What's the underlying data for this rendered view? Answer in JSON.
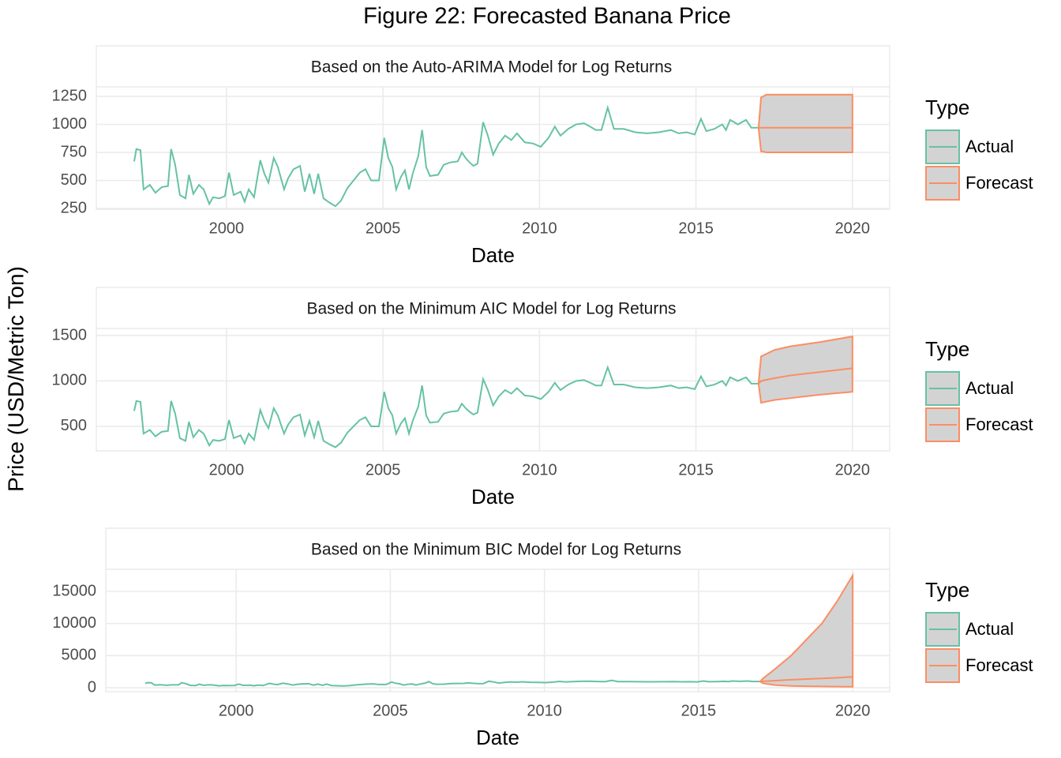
{
  "title": "Figure 22: Forecasted Banana Price",
  "y_label": "Price (USD/Metric Ton)",
  "chart_data": [
    {
      "type": "line",
      "subtitle": "Based on the Auto-ARIMA Model for Log Returns",
      "x_label": "Date",
      "legend_title": "Type",
      "band_color": "#d3d3d3",
      "grid": true,
      "xlim": [
        1995.84,
        2021.19
      ],
      "xticks": [
        2000,
        2005,
        2010,
        2015,
        2020
      ],
      "ylim": [
        243,
        1335
      ],
      "yticks": [
        250,
        500,
        750,
        1000,
        1250
      ],
      "series": [
        {
          "name": "Actual",
          "color": "#66c2a5",
          "x": [
            1997.05,
            1997.12,
            1997.25,
            1997.35,
            1997.55,
            1997.73,
            1997.93,
            1998.13,
            1998.23,
            1998.36,
            1998.51,
            1998.69,
            1998.8,
            1998.94,
            1999.12,
            1999.27,
            1999.45,
            1999.57,
            1999.77,
            1999.95,
            2000.08,
            2000.23,
            2000.45,
            2000.58,
            2000.71,
            2000.88,
            2001.08,
            2001.21,
            2001.34,
            2001.51,
            2001.64,
            2001.84,
            2001.97,
            2002.14,
            2002.35,
            2002.5,
            2002.65,
            2002.8,
            2002.93,
            2003.1,
            2003.3,
            2003.48,
            2003.66,
            2003.86,
            2004.06,
            2004.26,
            2004.44,
            2004.62,
            2004.87,
            2005.04,
            2005.17,
            2005.3,
            2005.42,
            2005.57,
            2005.7,
            2005.83,
            2005.95,
            2006.13,
            2006.25,
            2006.38,
            2006.5,
            2006.76,
            2006.94,
            2007.14,
            2007.39,
            2007.52,
            2007.64,
            2007.77,
            2007.89,
            2008.02,
            2008.2,
            2008.35,
            2008.52,
            2008.7,
            2008.9,
            2009.1,
            2009.28,
            2009.53,
            2009.79,
            2010.04,
            2010.29,
            2010.49,
            2010.67,
            2010.92,
            2011.17,
            2011.42,
            2011.62,
            2011.8,
            2011.98,
            2012.18,
            2012.38,
            2012.69,
            2013.06,
            2013.44,
            2013.82,
            2014.2,
            2014.45,
            2014.7,
            2014.96,
            2015.16,
            2015.33,
            2015.59,
            2015.84,
            2015.96,
            2016.09,
            2016.34,
            2016.6,
            2016.77,
            2017.02
          ],
          "values": [
            670,
            780,
            770,
            420,
            460,
            390,
            440,
            450,
            780,
            640,
            370,
            340,
            550,
            380,
            460,
            420,
            290,
            350,
            340,
            360,
            570,
            370,
            400,
            310,
            420,
            350,
            680,
            560,
            480,
            700,
            620,
            420,
            520,
            600,
            630,
            400,
            560,
            380,
            560,
            340,
            300,
            270,
            320,
            430,
            500,
            570,
            600,
            500,
            500,
            880,
            700,
            620,
            420,
            530,
            590,
            420,
            560,
            720,
            950,
            620,
            540,
            550,
            640,
            660,
            670,
            750,
            700,
            660,
            630,
            650,
            1020,
            900,
            730,
            830,
            900,
            860,
            920,
            840,
            830,
            800,
            880,
            980,
            900,
            960,
            1000,
            1010,
            980,
            950,
            950,
            1150,
            960,
            960,
            930,
            920,
            930,
            950,
            920,
            930,
            910,
            1050,
            940,
            960,
            1000,
            950,
            1040,
            1000,
            1040,
            970,
            970
          ]
        },
        {
          "name": "Forecast",
          "color": "#fc8d62",
          "x": [
            2017.0,
            2017.08,
            2017.25,
            2020.0
          ],
          "values": [
            970,
            970,
            970,
            970
          ],
          "upper": [
            970,
            1240,
            1265,
            1265
          ],
          "lower": [
            970,
            760,
            750,
            750
          ]
        }
      ]
    },
    {
      "type": "line",
      "subtitle": "Based on the Minimum AIC Model for Log Returns",
      "x_label": "Date",
      "legend_title": "Type",
      "band_color": "#d3d3d3",
      "grid": true,
      "xlim": [
        1995.84,
        2021.19
      ],
      "xticks": [
        2000,
        2005,
        2010,
        2015,
        2020
      ],
      "ylim": [
        230,
        1578
      ],
      "yticks": [
        500,
        1000,
        1500
      ],
      "series": [
        {
          "name": "Actual",
          "color": "#66c2a5",
          "x": [
            1997.05,
            1997.12,
            1997.25,
            1997.35,
            1997.55,
            1997.73,
            1997.93,
            1998.13,
            1998.23,
            1998.36,
            1998.51,
            1998.69,
            1998.8,
            1998.94,
            1999.12,
            1999.27,
            1999.45,
            1999.57,
            1999.77,
            1999.95,
            2000.08,
            2000.23,
            2000.45,
            2000.58,
            2000.71,
            2000.88,
            2001.08,
            2001.21,
            2001.34,
            2001.51,
            2001.64,
            2001.84,
            2001.97,
            2002.14,
            2002.35,
            2002.5,
            2002.65,
            2002.8,
            2002.93,
            2003.1,
            2003.3,
            2003.48,
            2003.66,
            2003.86,
            2004.06,
            2004.26,
            2004.44,
            2004.62,
            2004.87,
            2005.04,
            2005.17,
            2005.3,
            2005.42,
            2005.57,
            2005.7,
            2005.83,
            2005.95,
            2006.13,
            2006.25,
            2006.38,
            2006.5,
            2006.76,
            2006.94,
            2007.14,
            2007.39,
            2007.52,
            2007.64,
            2007.77,
            2007.89,
            2008.02,
            2008.2,
            2008.35,
            2008.52,
            2008.7,
            2008.9,
            2009.1,
            2009.28,
            2009.53,
            2009.79,
            2010.04,
            2010.29,
            2010.49,
            2010.67,
            2010.92,
            2011.17,
            2011.42,
            2011.62,
            2011.8,
            2011.98,
            2012.18,
            2012.38,
            2012.69,
            2013.06,
            2013.44,
            2013.82,
            2014.2,
            2014.45,
            2014.7,
            2014.96,
            2015.16,
            2015.33,
            2015.59,
            2015.84,
            2015.96,
            2016.09,
            2016.34,
            2016.6,
            2016.77,
            2017.02
          ],
          "values": [
            670,
            780,
            770,
            420,
            460,
            390,
            440,
            450,
            780,
            640,
            370,
            340,
            550,
            380,
            460,
            420,
            290,
            350,
            340,
            360,
            570,
            370,
            400,
            310,
            420,
            350,
            680,
            560,
            480,
            700,
            620,
            420,
            520,
            600,
            630,
            400,
            560,
            380,
            560,
            340,
            300,
            270,
            320,
            430,
            500,
            570,
            600,
            500,
            500,
            880,
            700,
            620,
            420,
            530,
            590,
            420,
            560,
            720,
            950,
            620,
            540,
            550,
            640,
            660,
            670,
            750,
            700,
            660,
            630,
            650,
            1020,
            900,
            730,
            830,
            900,
            860,
            920,
            840,
            830,
            800,
            880,
            980,
            900,
            960,
            1000,
            1010,
            980,
            950,
            950,
            1150,
            960,
            960,
            930,
            920,
            930,
            950,
            920,
            930,
            910,
            1050,
            940,
            960,
            1000,
            950,
            1040,
            1000,
            1040,
            970,
            970
          ]
        },
        {
          "name": "Forecast",
          "color": "#fc8d62",
          "x": [
            2017.0,
            2017.08,
            2017.5,
            2018.0,
            2019.0,
            2020.0
          ],
          "values": [
            970,
            1000,
            1030,
            1060,
            1100,
            1140
          ],
          "upper": [
            970,
            1270,
            1340,
            1380,
            1430,
            1490
          ],
          "lower": [
            970,
            760,
            790,
            810,
            850,
            880
          ]
        }
      ]
    },
    {
      "type": "line",
      "subtitle": "Based on the Minimum BIC Model for Log Returns",
      "x_label": "Date",
      "legend_title": "Type",
      "band_color": "#d3d3d3",
      "grid": true,
      "xlim": [
        1995.77,
        2021.2
      ],
      "xticks": [
        2000,
        2005,
        2010,
        2015,
        2020
      ],
      "ylim": [
        -615,
        18444
      ],
      "yticks": [
        0,
        5000,
        10000,
        15000
      ],
      "series": [
        {
          "name": "Actual",
          "color": "#66c2a5",
          "x": [
            1997.05,
            1997.12,
            1997.25,
            1997.35,
            1997.55,
            1997.73,
            1997.93,
            1998.13,
            1998.23,
            1998.36,
            1998.51,
            1998.69,
            1998.8,
            1998.94,
            1999.12,
            1999.27,
            1999.45,
            1999.57,
            1999.77,
            1999.95,
            2000.08,
            2000.23,
            2000.45,
            2000.58,
            2000.71,
            2000.88,
            2001.08,
            2001.21,
            2001.34,
            2001.51,
            2001.64,
            2001.84,
            2001.97,
            2002.14,
            2002.35,
            2002.5,
            2002.65,
            2002.8,
            2002.93,
            2003.1,
            2003.3,
            2003.48,
            2003.66,
            2003.86,
            2004.06,
            2004.26,
            2004.44,
            2004.62,
            2004.87,
            2005.04,
            2005.17,
            2005.3,
            2005.42,
            2005.57,
            2005.7,
            2005.83,
            2005.95,
            2006.13,
            2006.25,
            2006.38,
            2006.5,
            2006.76,
            2006.94,
            2007.14,
            2007.39,
            2007.52,
            2007.64,
            2007.77,
            2007.89,
            2008.02,
            2008.2,
            2008.35,
            2008.52,
            2008.7,
            2008.9,
            2009.1,
            2009.28,
            2009.53,
            2009.79,
            2010.04,
            2010.29,
            2010.49,
            2010.67,
            2010.92,
            2011.17,
            2011.42,
            2011.62,
            2011.8,
            2011.98,
            2012.18,
            2012.38,
            2012.69,
            2013.06,
            2013.44,
            2013.82,
            2014.2,
            2014.45,
            2014.7,
            2014.96,
            2015.16,
            2015.33,
            2015.59,
            2015.84,
            2015.96,
            2016.09,
            2016.34,
            2016.6,
            2016.77,
            2017.02
          ],
          "values": [
            670,
            780,
            770,
            420,
            460,
            390,
            440,
            450,
            780,
            640,
            370,
            340,
            550,
            380,
            460,
            420,
            290,
            350,
            340,
            360,
            570,
            370,
            400,
            310,
            420,
            350,
            680,
            560,
            480,
            700,
            620,
            420,
            520,
            600,
            630,
            400,
            560,
            380,
            560,
            340,
            300,
            270,
            320,
            430,
            500,
            570,
            600,
            500,
            500,
            880,
            700,
            620,
            420,
            530,
            590,
            420,
            560,
            720,
            950,
            620,
            540,
            550,
            640,
            660,
            670,
            750,
            700,
            660,
            630,
            650,
            1020,
            900,
            730,
            830,
            900,
            860,
            920,
            840,
            830,
            800,
            880,
            980,
            900,
            960,
            1000,
            1010,
            980,
            950,
            950,
            1150,
            960,
            960,
            930,
            920,
            930,
            950,
            920,
            930,
            910,
            1050,
            940,
            960,
            1000,
            950,
            1040,
            1000,
            1040,
            970,
            970
          ]
        },
        {
          "name": "Forecast",
          "color": "#fc8d62",
          "x": [
            2017.0,
            2017.08,
            2017.5,
            2018.0,
            2018.5,
            2019.0,
            2019.5,
            2020.0
          ],
          "values": [
            970,
            1000,
            1100,
            1250,
            1350,
            1450,
            1550,
            1700
          ],
          "upper": [
            970,
            1400,
            3000,
            5000,
            7500,
            10000,
            13500,
            17500
          ],
          "lower": [
            970,
            700,
            400,
            280,
            230,
            200,
            170,
            150
          ]
        }
      ]
    }
  ]
}
